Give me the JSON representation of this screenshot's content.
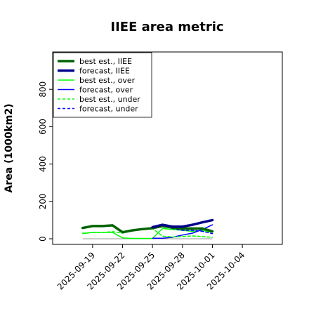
{
  "chart_data": {
    "type": "line",
    "title": "IIEE area metric",
    "xlabel": "",
    "ylabel": "Area (1000km2)",
    "ylim": [
      -30,
      1000
    ],
    "y_ticks": [
      0,
      200,
      400,
      600,
      800
    ],
    "x_range": [
      "2025-09-15",
      "2025-10-08"
    ],
    "x_ticks": [
      {
        "date": "2025-09-19",
        "label": "2025-09-19",
        "color": "#000000"
      },
      {
        "date": "2025-09-22",
        "label": "2025-09-22",
        "color": "#000000"
      },
      {
        "date": "2025-09-25",
        "label": "2025-09-25",
        "color": "#2ca02c"
      },
      {
        "date": "2025-09-28",
        "label": "2025-09-28",
        "color": "#000000"
      },
      {
        "date": "2025-10-01",
        "label": "2025-10-01",
        "color": "#000000"
      },
      {
        "date": "2025-10-04",
        "label": "2025-10-04",
        "color": "#000000"
      }
    ],
    "zero_line": {
      "y": 0,
      "color": "#999999"
    },
    "legend_position": "top-left",
    "grid": false,
    "series": [
      {
        "name": "best est., IIEE",
        "color": "#006400",
        "width": 3.5,
        "dash": "",
        "x": [
          "2025-09-18",
          "2025-09-19",
          "2025-09-20",
          "2025-09-21",
          "2025-09-22",
          "2025-09-23",
          "2025-09-24",
          "2025-09-25",
          "2025-09-26",
          "2025-09-27",
          "2025-09-28",
          "2025-09-29",
          "2025-09-30",
          "2025-10-01"
        ],
        "y": [
          58,
          68,
          68,
          72,
          35,
          45,
          52,
          57,
          68,
          60,
          55,
          55,
          55,
          40
        ]
      },
      {
        "name": "forecast, IIEE",
        "color": "#00008b",
        "width": 3.5,
        "dash": "",
        "x": [
          "2025-09-25",
          "2025-09-26",
          "2025-09-27",
          "2025-09-28",
          "2025-09-29",
          "2025-09-30",
          "2025-10-01"
        ],
        "y": [
          62,
          75,
          65,
          65,
          75,
          88,
          100
        ]
      },
      {
        "name": "best est., over",
        "color": "#00ff00",
        "width": 1.5,
        "dash": "",
        "x": [
          "2025-09-18",
          "2025-09-19",
          "2025-09-20",
          "2025-09-21",
          "2025-09-22",
          "2025-09-23",
          "2025-09-24",
          "2025-09-25",
          "2025-09-26",
          "2025-09-27",
          "2025-09-28",
          "2025-09-29",
          "2025-09-30",
          "2025-10-01"
        ],
        "y": [
          28,
          34,
          34,
          34,
          5,
          2,
          2,
          2,
          55,
          50,
          45,
          40,
          45,
          35
        ]
      },
      {
        "name": "forecast, over",
        "color": "#0000ff",
        "width": 1.5,
        "dash": "",
        "x": [
          "2025-09-25",
          "2025-09-26",
          "2025-09-27",
          "2025-09-28",
          "2025-09-29",
          "2025-09-30",
          "2025-10-01"
        ],
        "y": [
          3,
          3,
          8,
          20,
          30,
          50,
          75
        ]
      },
      {
        "name": "best est., under",
        "color": "#00ff00",
        "width": 1.5,
        "dash": "4,3",
        "x": [
          "2025-09-18",
          "2025-09-19",
          "2025-09-20",
          "2025-09-21",
          "2025-09-22",
          "2025-09-23",
          "2025-09-24",
          "2025-09-25",
          "2025-09-26",
          "2025-09-27",
          "2025-09-28",
          "2025-09-29",
          "2025-09-30",
          "2025-10-01"
        ],
        "y": [
          30,
          34,
          34,
          38,
          30,
          42,
          50,
          55,
          14,
          10,
          12,
          15,
          12,
          8
        ]
      },
      {
        "name": "forecast, under",
        "color": "#0000ff",
        "width": 1.5,
        "dash": "4,3",
        "x": [
          "2025-09-25",
          "2025-09-26",
          "2025-09-27",
          "2025-09-28",
          "2025-09-29",
          "2025-09-30",
          "2025-10-01"
        ],
        "y": [
          58,
          70,
          55,
          45,
          45,
          40,
          28
        ]
      }
    ]
  }
}
